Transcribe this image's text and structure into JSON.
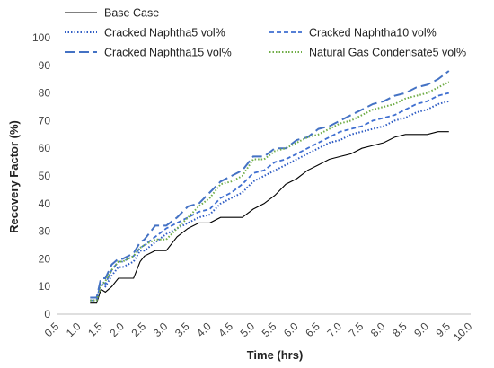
{
  "chart_data": {
    "type": "line",
    "xlabel": "Time (hrs)",
    "ylabel": "Recovery Factor (%)",
    "xlim": [
      0.5,
      10.0
    ],
    "ylim": [
      0,
      100
    ],
    "x_ticks": [
      "0.5",
      "1.0",
      "1.5",
      "2.0",
      "2.5",
      "3.0",
      "3.5",
      "4.0",
      "4.5",
      "5.0",
      "5.5",
      "6.0",
      "6.5",
      "7.0",
      "7.5",
      "8.0",
      "8.5",
      "9.0",
      "9.5",
      "10.0"
    ],
    "y_ticks": [
      "0",
      "10",
      "20",
      "30",
      "40",
      "50",
      "60",
      "70",
      "80",
      "90",
      "100"
    ],
    "grid": false,
    "legend_position": "top",
    "series": [
      {
        "name": "Base Case",
        "color": "#000000",
        "dash": "solid",
        "x": [
          1.25,
          1.4,
          1.5,
          1.6,
          1.75,
          1.9,
          2.0,
          2.25,
          2.4,
          2.5,
          2.75,
          3.0,
          3.25,
          3.5,
          3.75,
          4.0,
          4.25,
          4.5,
          4.75,
          5.0,
          5.25,
          5.5,
          5.75,
          6.0,
          6.25,
          6.5,
          6.75,
          7.0,
          7.25,
          7.5,
          7.75,
          8.0,
          8.25,
          8.5,
          8.75,
          9.0,
          9.25,
          9.5
        ],
        "y": [
          4,
          4,
          9,
          8,
          10,
          13,
          13,
          13,
          19,
          21,
          23,
          23,
          28,
          31,
          33,
          33,
          35,
          35,
          35,
          38,
          40,
          43,
          47,
          49,
          52,
          54,
          56,
          57,
          58,
          60,
          61,
          62,
          64,
          65,
          65,
          65,
          66,
          66
        ]
      },
      {
        "name": "Cracked Naphtha5 vol%",
        "color": "#2e5cc4",
        "dash": "dotted",
        "x": [
          1.25,
          1.4,
          1.5,
          1.6,
          1.75,
          1.9,
          2.0,
          2.25,
          2.4,
          2.5,
          2.75,
          3.0,
          3.25,
          3.5,
          3.75,
          4.0,
          4.25,
          4.5,
          4.75,
          5.0,
          5.25,
          5.5,
          5.75,
          6.0,
          6.25,
          6.5,
          6.75,
          7.0,
          7.25,
          7.5,
          7.75,
          8.0,
          8.25,
          8.5,
          8.75,
          9.0,
          9.25,
          9.5
        ],
        "y": [
          5,
          5,
          11,
          10,
          14,
          17,
          17,
          19,
          23,
          23,
          26,
          29,
          31,
          33,
          35,
          36,
          40,
          42,
          44,
          48,
          50,
          52,
          54,
          56,
          58,
          60,
          62,
          63,
          65,
          66,
          67,
          68,
          70,
          71,
          73,
          74,
          76,
          77
        ]
      },
      {
        "name": "Cracked Naphtha10 vol%",
        "color": "#3f6fd1",
        "dash": "dashed",
        "x": [
          1.25,
          1.4,
          1.5,
          1.6,
          1.75,
          1.9,
          2.0,
          2.25,
          2.4,
          2.5,
          2.75,
          3.0,
          3.25,
          3.5,
          3.75,
          4.0,
          4.25,
          4.5,
          4.75,
          5.0,
          5.25,
          5.5,
          5.75,
          6.0,
          6.25,
          6.5,
          6.75,
          7.0,
          7.25,
          7.5,
          7.75,
          8.0,
          8.25,
          8.5,
          8.75,
          9.0,
          9.25,
          9.5
        ],
        "y": [
          5,
          5,
          12,
          11,
          16,
          19,
          19,
          21,
          24,
          25,
          28,
          31,
          33,
          35,
          37,
          38,
          42,
          44,
          47,
          51,
          52,
          55,
          56,
          58,
          60,
          62,
          64,
          66,
          67,
          68,
          70,
          71,
          72,
          74,
          76,
          77,
          79,
          80
        ]
      },
      {
        "name": "Cracked Naphtha15 vol%",
        "color": "#4472c4",
        "dash": "longdash",
        "x": [
          1.25,
          1.4,
          1.5,
          1.6,
          1.75,
          1.9,
          2.0,
          2.25,
          2.4,
          2.5,
          2.75,
          3.0,
          3.25,
          3.5,
          3.75,
          4.0,
          4.25,
          4.5,
          4.75,
          5.0,
          5.25,
          5.5,
          5.75,
          6.0,
          6.25,
          6.5,
          6.75,
          7.0,
          7.25,
          7.5,
          7.75,
          8.0,
          8.25,
          8.5,
          8.75,
          9.0,
          9.25,
          9.5
        ],
        "y": [
          6,
          6,
          13,
          13,
          18,
          20,
          20,
          22,
          26,
          27,
          32,
          32,
          35,
          39,
          40,
          44,
          48,
          50,
          52,
          57,
          57,
          60,
          60,
          63,
          64,
          67,
          68,
          70,
          72,
          74,
          76,
          77,
          79,
          80,
          82,
          83,
          85,
          88
        ]
      },
      {
        "name": "Natural Gas Condensate5 vol%",
        "color": "#70ad47",
        "dash": "dotted",
        "x": [
          1.25,
          1.4,
          1.5,
          1.6,
          1.75,
          1.9,
          2.0,
          2.25,
          2.4,
          2.5,
          2.75,
          3.0,
          3.25,
          3.5,
          3.75,
          4.0,
          4.25,
          4.5,
          4.75,
          5.0,
          5.25,
          5.5,
          5.75,
          6.0,
          6.25,
          6.5,
          6.75,
          7.0,
          7.25,
          7.5,
          7.75,
          8.0,
          8.25,
          8.5,
          8.75,
          9.0,
          9.25,
          9.5
        ],
        "y": [
          5,
          5,
          10,
          12,
          16,
          19,
          19,
          21,
          24,
          25,
          27,
          27,
          31,
          35,
          39,
          42,
          47,
          48,
          50,
          56,
          56,
          59,
          60,
          62,
          64,
          65,
          67,
          69,
          70,
          72,
          74,
          75,
          76,
          78,
          79,
          80,
          82,
          84
        ]
      }
    ]
  }
}
